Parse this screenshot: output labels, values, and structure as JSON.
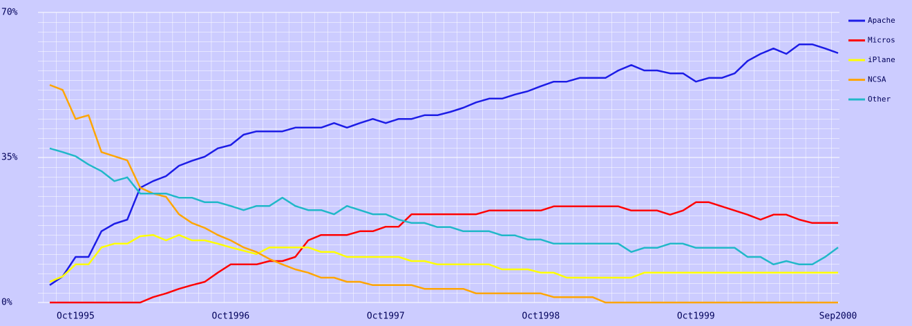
{
  "chart_data": {
    "type": "line",
    "categories": [
      null,
      null,
      "Oct1995",
      null,
      null,
      null,
      null,
      null,
      null,
      null,
      null,
      null,
      null,
      null,
      "Oct1996",
      null,
      null,
      null,
      null,
      null,
      null,
      null,
      null,
      null,
      null,
      null,
      "Oct1997",
      null,
      null,
      null,
      null,
      null,
      null,
      null,
      null,
      null,
      null,
      null,
      "Oct1998",
      null,
      null,
      null,
      null,
      null,
      null,
      null,
      null,
      null,
      null,
      null,
      "Oct1999",
      null,
      null,
      null,
      null,
      null,
      null,
      null,
      null,
      null,
      null,
      "Sep2000"
    ],
    "ylim": [
      0,
      70
    ],
    "yticks": [
      {
        "value": 0,
        "label": "0%"
      },
      {
        "value": 35,
        "label": "35%"
      },
      {
        "value": 70,
        "label": "70%"
      }
    ],
    "grid": true,
    "legend": "right",
    "series": [
      {
        "name": "Apache",
        "color": "#1c1ce6",
        "values": [
          4.2,
          6.3,
          11,
          11,
          17.2,
          19,
          20,
          27.7,
          29.3,
          30.5,
          33,
          34.2,
          35.2,
          37.2,
          38,
          40.5,
          41.3,
          41.3,
          41.3,
          42.2,
          42.2,
          42.2,
          43.3,
          42.2,
          43.3,
          44.3,
          43.3,
          44.3,
          44.3,
          45.2,
          45.2,
          46,
          47,
          48.3,
          49.2,
          49.2,
          50.2,
          51,
          52.2,
          53.3,
          53.3,
          54.2,
          54.2,
          54.2,
          56,
          57.3,
          56,
          56,
          55.3,
          55.3,
          53.3,
          54.2,
          54.2,
          55.3,
          58.3,
          60,
          61.3,
          60,
          62.3,
          62.3,
          61.3,
          60.2
        ]
      },
      {
        "name": "Micros",
        "color": "#ff0000",
        "values": [
          0,
          0,
          0,
          0,
          0,
          0,
          0,
          0,
          1.3,
          2.2,
          3.3,
          4.2,
          5,
          7.2,
          9.2,
          9.2,
          9.2,
          10,
          10,
          11,
          15,
          16.3,
          16.3,
          16.3,
          17.2,
          17.2,
          18.3,
          18.3,
          21.3,
          21.3,
          21.3,
          21.3,
          21.3,
          21.3,
          22.2,
          22.2,
          22.2,
          22.2,
          22.2,
          23.2,
          23.2,
          23.2,
          23.2,
          23.2,
          23.2,
          22.2,
          22.2,
          22.2,
          21.2,
          22.2,
          24.2,
          24.2,
          23.2,
          22.2,
          21.2,
          20,
          21.2,
          21.2,
          20,
          19.2,
          19.2,
          19.2
        ]
      },
      {
        "name": "iPlane",
        "color": "#ffff00",
        "values": [
          5,
          6.3,
          9.2,
          9.2,
          13.3,
          14.2,
          14.2,
          16,
          16.3,
          15,
          16.3,
          15,
          15,
          14.2,
          13.3,
          12.5,
          11.7,
          13.3,
          13.3,
          13.3,
          13.3,
          12.2,
          12.2,
          11,
          11,
          11,
          11,
          11,
          10,
          10,
          9.2,
          9.2,
          9.2,
          9.2,
          9.2,
          8,
          8,
          8,
          7.2,
          7.2,
          6,
          6,
          6,
          6,
          6,
          6,
          7.2,
          7.2,
          7.2,
          7.2,
          7.2,
          7.2,
          7.2,
          7.2,
          7.2,
          7.2,
          7.2,
          7.2,
          7.2,
          7.2,
          7.2,
          7.2
        ]
      },
      {
        "name": "NCSA",
        "color": "#ffa500",
        "values": [
          52.5,
          51.3,
          44.3,
          45.2,
          36.3,
          35.3,
          34.3,
          27.7,
          26.3,
          25.5,
          21.3,
          19.2,
          18,
          16.3,
          15,
          13.3,
          12.2,
          10.5,
          9.2,
          8,
          7.2,
          6,
          6,
          5,
          5,
          4.2,
          4.2,
          4.2,
          4.2,
          3.3,
          3.3,
          3.3,
          3.3,
          2.2,
          2.2,
          2.2,
          2.2,
          2.2,
          2.2,
          1.3,
          1.3,
          1.3,
          1.3,
          0,
          0,
          0,
          0,
          0,
          0,
          0,
          0,
          0,
          0,
          0,
          0,
          0,
          0,
          0,
          0,
          0,
          0,
          0
        ]
      },
      {
        "name": "Other",
        "color": "#20b8c8",
        "values": [
          37.2,
          36.3,
          35.3,
          33.3,
          31.7,
          29.3,
          30.2,
          26.3,
          26.3,
          26.3,
          25.3,
          25.3,
          24.2,
          24.2,
          23.3,
          22.3,
          23.3,
          23.3,
          25.3,
          23.3,
          22.3,
          22.3,
          21.3,
          23.3,
          22.3,
          21.3,
          21.3,
          20,
          19.2,
          19.2,
          18.2,
          18.2,
          17.2,
          17.2,
          17.2,
          16.2,
          16.2,
          15.2,
          15.2,
          14.2,
          14.2,
          14.2,
          14.2,
          14.2,
          14.2,
          12.2,
          13.2,
          13.2,
          14.2,
          14.2,
          13.2,
          13.2,
          13.2,
          13.2,
          11,
          11,
          9.2,
          10,
          9.2,
          9.2,
          11,
          13.3
        ]
      }
    ]
  }
}
